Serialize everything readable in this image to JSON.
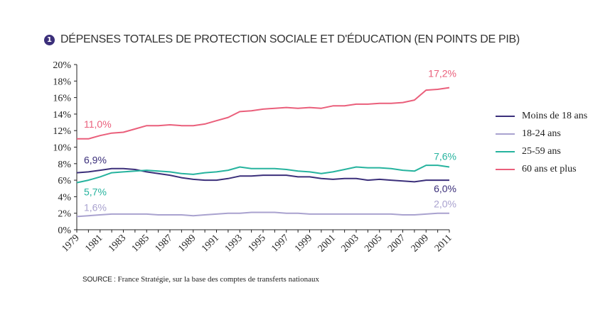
{
  "title": {
    "badge": "1",
    "text": "DÉPENSES TOTALES DE PROTECTION SOCIALE ET D'ÉDUCATION (EN POINTS DE PIB)"
  },
  "source": {
    "prefix": "SOURCE :",
    "text": " France Stratégie, sur la base des comptes de transferts nationaux"
  },
  "chart_data": {
    "type": "line",
    "x": [
      1979,
      1980,
      1981,
      1982,
      1983,
      1984,
      1985,
      1986,
      1987,
      1988,
      1989,
      1990,
      1991,
      1992,
      1993,
      1994,
      1995,
      1996,
      1997,
      1998,
      1999,
      2000,
      2001,
      2002,
      2003,
      2004,
      2005,
      2006,
      2007,
      2008,
      2009,
      2010,
      2011
    ],
    "x_tick_labels": [
      "1979",
      "1981",
      "1983",
      "1985",
      "1987",
      "1989",
      "1991",
      "1993",
      "1995",
      "1997",
      "1999",
      "2001",
      "2003",
      "2005",
      "2007",
      "2009",
      "2011"
    ],
    "y_tick_labels": [
      "0%",
      "2%",
      "4%",
      "6%",
      "8%",
      "10%",
      "12%",
      "14%",
      "16%",
      "18%",
      "20%"
    ],
    "ylim": [
      0,
      20
    ],
    "grid": false,
    "legend_position": "right",
    "series": [
      {
        "name": "Moins de 18 ans",
        "color": "#3b2f7a",
        "values": [
          6.9,
          7.0,
          7.2,
          7.4,
          7.4,
          7.3,
          7.0,
          6.8,
          6.6,
          6.3,
          6.1,
          6.0,
          6.0,
          6.2,
          6.5,
          6.5,
          6.6,
          6.6,
          6.6,
          6.4,
          6.4,
          6.2,
          6.1,
          6.2,
          6.2,
          6.0,
          6.1,
          6.0,
          5.9,
          5.8,
          6.0,
          6.0,
          6.0
        ],
        "start_label": "6,9%",
        "end_label": "6,0%"
      },
      {
        "name": "18-24 ans",
        "color": "#a9a2cf",
        "values": [
          1.6,
          1.7,
          1.8,
          1.9,
          1.9,
          1.9,
          1.9,
          1.8,
          1.8,
          1.8,
          1.7,
          1.8,
          1.9,
          2.0,
          2.0,
          2.1,
          2.1,
          2.1,
          2.0,
          2.0,
          1.9,
          1.9,
          1.9,
          1.9,
          1.9,
          1.9,
          1.9,
          1.9,
          1.8,
          1.8,
          1.9,
          2.0,
          2.0
        ],
        "start_label": "1,6%",
        "end_label": "2,0%"
      },
      {
        "name": "25-59 ans",
        "color": "#26b39e",
        "values": [
          5.7,
          6.0,
          6.4,
          6.9,
          7.0,
          7.1,
          7.2,
          7.1,
          7.0,
          6.8,
          6.7,
          6.9,
          7.0,
          7.2,
          7.6,
          7.4,
          7.4,
          7.4,
          7.3,
          7.1,
          7.0,
          6.8,
          7.0,
          7.3,
          7.6,
          7.5,
          7.5,
          7.4,
          7.2,
          7.1,
          7.8,
          7.8,
          7.6
        ],
        "start_label": "5,7%",
        "end_label": "7,6%"
      },
      {
        "name": "60 ans et plus",
        "color": "#ea5f7b",
        "values": [
          11.0,
          11.0,
          11.4,
          11.7,
          11.8,
          12.2,
          12.6,
          12.6,
          12.7,
          12.6,
          12.6,
          12.8,
          13.2,
          13.6,
          14.3,
          14.4,
          14.6,
          14.7,
          14.8,
          14.7,
          14.8,
          14.7,
          15.0,
          15.0,
          15.2,
          15.2,
          15.3,
          15.3,
          15.4,
          15.7,
          16.9,
          17.0,
          17.2
        ],
        "start_label": "11,0%",
        "end_label": "17,2%"
      }
    ]
  }
}
